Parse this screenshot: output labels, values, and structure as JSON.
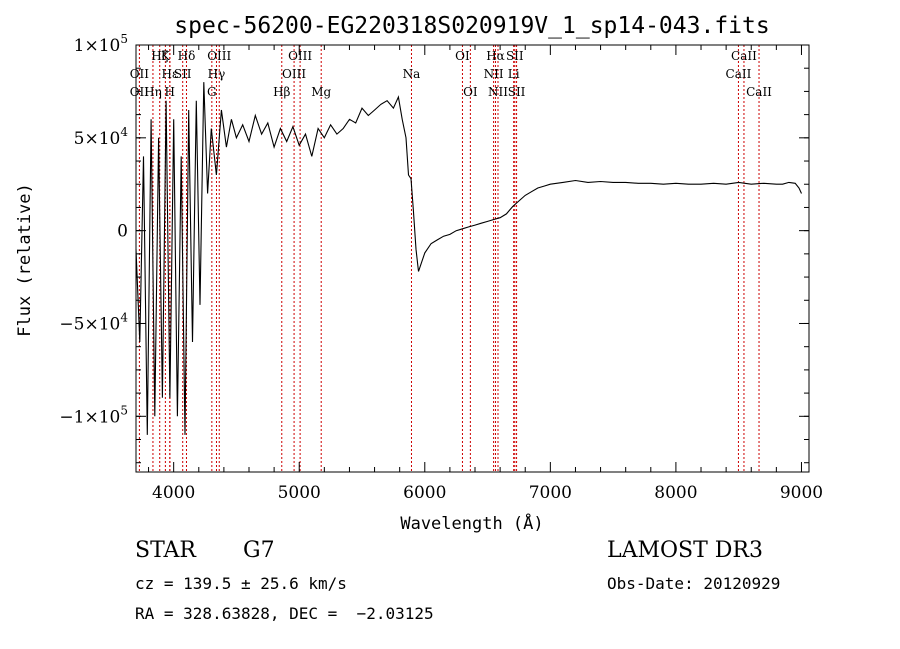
{
  "chart_data": {
    "type": "line",
    "title": "spec-56200-EG220318S020919V_1_sp14-043.fits",
    "xlabel": "Wavelength (Å)",
    "ylabel": "Flux (relative)",
    "xlim": [
      3700,
      9060
    ],
    "ylim": [
      -130000,
      100000
    ],
    "x_ticks": [
      {
        "value": 4000,
        "label": "4000"
      },
      {
        "value": 5000,
        "label": "5000"
      },
      {
        "value": 6000,
        "label": "6000"
      },
      {
        "value": 7000,
        "label": "7000"
      },
      {
        "value": 8000,
        "label": "8000"
      },
      {
        "value": 9000,
        "label": "9000"
      }
    ],
    "y_ticks": [
      {
        "value": 100000,
        "mant": "1×10",
        "exp": "5"
      },
      {
        "value": 50000,
        "mant": "5×10",
        "exp": "4"
      },
      {
        "value": 0,
        "mant": "0",
        "exp": ""
      },
      {
        "value": -50000,
        "mant": "−5×10",
        "exp": "4"
      },
      {
        "value": -100000,
        "mant": "−1×10",
        "exp": "5"
      }
    ],
    "series": [
      {
        "color": "#000000",
        "x": [
          3700,
          3730,
          3760,
          3790,
          3820,
          3850,
          3880,
          3910,
          3940,
          3970,
          4000,
          4030,
          4060,
          4090,
          4120,
          4150,
          4180,
          4210,
          4240,
          4270,
          4300,
          4340,
          4380,
          4420,
          4460,
          4500,
          4550,
          4600,
          4650,
          4700,
          4750,
          4800,
          4850,
          4900,
          4950,
          5000,
          5050,
          5100,
          5150,
          5200,
          5250,
          5300,
          5350,
          5400,
          5450,
          5500,
          5550,
          5600,
          5650,
          5700,
          5750,
          5790,
          5820,
          5850,
          5870,
          5890,
          5910,
          5930,
          5950,
          5970,
          6000,
          6050,
          6100,
          6150,
          6200,
          6250,
          6300,
          6350,
          6400,
          6450,
          6500,
          6550,
          6600,
          6650,
          6700,
          6750,
          6800,
          6850,
          6900,
          6950,
          7000,
          7100,
          7200,
          7300,
          7400,
          7500,
          7600,
          7700,
          7800,
          7900,
          8000,
          8100,
          8200,
          8300,
          8400,
          8500,
          8600,
          8700,
          8800,
          8850,
          8900,
          8950,
          8980,
          9000
        ],
        "y": [
          -10000,
          -60000,
          40000,
          -110000,
          60000,
          -100000,
          50000,
          -90000,
          70000,
          -90000,
          60000,
          -100000,
          40000,
          -110000,
          65000,
          -60000,
          70000,
          -40000,
          80000,
          20000,
          55000,
          30000,
          65000,
          45000,
          60000,
          50000,
          57000,
          48000,
          62000,
          52000,
          58000,
          45000,
          55000,
          48000,
          56000,
          46000,
          52000,
          40000,
          55000,
          50000,
          57000,
          52000,
          55000,
          60000,
          58000,
          66000,
          62000,
          65000,
          68000,
          70000,
          66000,
          72000,
          60000,
          50000,
          30000,
          28000,
          10000,
          -10000,
          -22000,
          -18000,
          -12000,
          -7000,
          -5000,
          -3000,
          -2000,
          0,
          1000,
          2000,
          3000,
          4000,
          5000,
          6000,
          7000,
          9000,
          13000,
          16000,
          19000,
          21000,
          23000,
          24000,
          25000,
          26000,
          27000,
          26000,
          26500,
          26000,
          26000,
          25500,
          25500,
          25000,
          25500,
          25000,
          25000,
          25500,
          25000,
          26000,
          25000,
          25500,
          25000,
          25000,
          26000,
          25500,
          23000,
          20000
        ]
      }
    ],
    "line_groups": [
      {
        "name": "Hδ",
        "x": 4102,
        "labels": [
          {
            "text": "Hδ",
            "row": 0
          }
        ]
      },
      {
        "name": "Hη",
        "x": 3835,
        "labels": [
          {
            "text": "Hη",
            "row": 2
          }
        ]
      },
      {
        "name": "Hζ",
        "x": 3889,
        "labels": [
          {
            "text": "Hζ",
            "row": 0
          }
        ]
      },
      {
        "name": "K",
        "x": 3934,
        "labels": [
          {
            "text": "K",
            "row": 0
          }
        ]
      },
      {
        "name": "H",
        "x": 3969,
        "labels": [
          {
            "text": "H",
            "row": 2
          }
        ]
      },
      {
        "name": "He",
        "x": 3970,
        "labels": [
          {
            "text": "Hε",
            "row": 1
          }
        ]
      },
      {
        "name": "OII",
        "x": 3727,
        "labels": [
          {
            "text": "OII",
            "row": 1
          },
          {
            "text": "OII",
            "row": 2
          }
        ]
      },
      {
        "name": "SII-blue",
        "x": 4072,
        "labels": [
          {
            "text": "SII",
            "row": 1
          }
        ]
      },
      {
        "name": "G",
        "x": 4304,
        "labels": [
          {
            "text": "G",
            "row": 2
          }
        ]
      },
      {
        "name": "Hγ",
        "x": 4341,
        "labels": [
          {
            "text": "Hγ",
            "row": 1
          }
        ]
      },
      {
        "name": "OIII-4363",
        "x": 4363,
        "labels": [
          {
            "text": "OIII",
            "row": 0
          }
        ]
      },
      {
        "name": "Hβ",
        "x": 4861,
        "labels": [
          {
            "text": "Hβ",
            "row": 2
          }
        ]
      },
      {
        "name": "OIII-4959",
        "x": 4959,
        "labels": [
          {
            "text": "OIII",
            "row": 1
          }
        ]
      },
      {
        "name": "OIII-5007",
        "x": 5007,
        "labels": [
          {
            "text": "OIII",
            "row": 0
          }
        ]
      },
      {
        "name": "Mg",
        "x": 5175,
        "labels": [
          {
            "text": "Mg",
            "row": 2
          }
        ]
      },
      {
        "name": "Na",
        "x": 5894,
        "labels": [
          {
            "text": "Na",
            "row": 1
          }
        ]
      },
      {
        "name": "OI-6300",
        "x": 6300,
        "labels": [
          {
            "text": "OI",
            "row": 0
          }
        ]
      },
      {
        "name": "OI-6363",
        "x": 6363,
        "labels": [
          {
            "text": "OI",
            "row": 2
          }
        ]
      },
      {
        "name": "NII-6548",
        "x": 6548,
        "labels": [
          {
            "text": "NII",
            "row": 1
          }
        ]
      },
      {
        "name": "Hα",
        "x": 6563,
        "labels": [
          {
            "text": "Hα",
            "row": 0
          }
        ]
      },
      {
        "name": "NII-6583",
        "x": 6583,
        "labels": [
          {
            "text": "NII",
            "row": 2
          }
        ]
      },
      {
        "name": "Li",
        "x": 6708,
        "labels": [
          {
            "text": "Li",
            "row": 1
          }
        ]
      },
      {
        "name": "SII-6717",
        "x": 6717,
        "labels": [
          {
            "text": "SII",
            "row": 0
          }
        ]
      },
      {
        "name": "SII-6731",
        "x": 6731,
        "labels": [
          {
            "text": "SII",
            "row": 2
          }
        ]
      },
      {
        "name": "CaII-8498",
        "x": 8498,
        "labels": [
          {
            "text": "CaII",
            "row": 1
          }
        ]
      },
      {
        "name": "CaII-8542",
        "x": 8542,
        "labels": [
          {
            "text": "CaII",
            "row": 0
          }
        ]
      },
      {
        "name": "CaII-8662",
        "x": 8662,
        "labels": [
          {
            "text": "CaII",
            "row": 2
          }
        ]
      }
    ],
    "line_color": "#cc0000"
  },
  "info": {
    "object_class": "STAR",
    "subclass": "G7",
    "survey": "LAMOST DR3",
    "cz": "cz = 139.5 ± 25.6 km/s",
    "obs_date": "Obs-Date: 20120929",
    "coords": "RA = 328.63828, DEC =  −2.03125"
  }
}
